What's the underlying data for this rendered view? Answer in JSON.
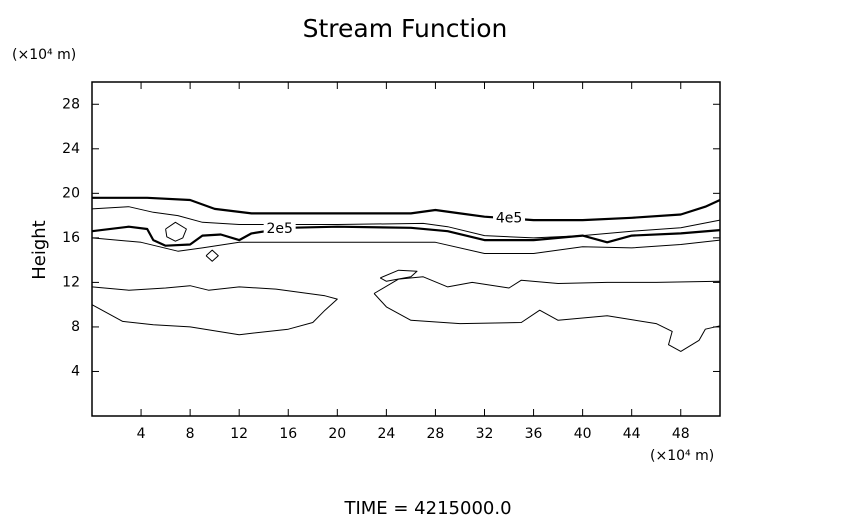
{
  "chart_data": {
    "type": "contour",
    "title": "Stream Function",
    "y_unit": "(×10⁴ m)",
    "x_unit": "(×10⁴ m)",
    "ylabel": "Height",
    "footer": "TIME = 4215000.0",
    "xlim": [
      0,
      51.2
    ],
    "ylim": [
      0,
      30
    ],
    "xticks": [
      4,
      8,
      12,
      16,
      20,
      24,
      28,
      32,
      36,
      40,
      44,
      48
    ],
    "yticks": [
      4,
      8,
      12,
      16,
      20,
      24,
      28
    ],
    "color": "#000000",
    "contours": [
      {
        "label": "4e5",
        "bold": true,
        "x": [
          0,
          4.5,
          8,
          10,
          13,
          20,
          26,
          28,
          30,
          32,
          34,
          36,
          40,
          44,
          48,
          50,
          51.2
        ],
        "y": [
          19.6,
          19.6,
          19.4,
          18.6,
          18.2,
          18.2,
          18.2,
          18.5,
          18.2,
          17.9,
          17.75,
          17.6,
          17.6,
          17.8,
          18.1,
          18.8,
          19.4
        ]
      },
      {
        "bold": false,
        "x": [
          0,
          3,
          5,
          7,
          9,
          12,
          20,
          27,
          29,
          32,
          36,
          40,
          44,
          48,
          51.2
        ],
        "y": [
          18.6,
          18.8,
          18.3,
          18.0,
          17.4,
          17.2,
          17.2,
          17.3,
          17.0,
          16.2,
          16.0,
          16.2,
          16.6,
          16.9,
          17.6
        ]
      },
      {
        "label": "2e5",
        "bold": true,
        "x": [
          0,
          3,
          4.5,
          5,
          6,
          8,
          9,
          10.5,
          12,
          13,
          15.3,
          16,
          20,
          26,
          29,
          32,
          36,
          40,
          42,
          44,
          48,
          51.2
        ],
        "y": [
          16.6,
          17.0,
          16.8,
          15.8,
          15.3,
          15.4,
          16.2,
          16.3,
          15.8,
          16.4,
          16.8,
          16.9,
          17.0,
          16.9,
          16.6,
          15.8,
          15.8,
          16.2,
          15.6,
          16.2,
          16.4,
          16.7
        ]
      },
      {
        "bold": false,
        "x": [
          0,
          4,
          7,
          9,
          12,
          16,
          20,
          28,
          32,
          36,
          40,
          44,
          48,
          51.2
        ],
        "y": [
          16.0,
          15.6,
          14.8,
          15.1,
          15.6,
          15.6,
          15.6,
          15.6,
          14.6,
          14.6,
          15.2,
          15.1,
          15.4,
          15.8
        ]
      },
      {
        "bold": false,
        "x": [
          6.0,
          6.8,
          7.7,
          7.4,
          6.8,
          6.1,
          6.0
        ],
        "y": [
          16.8,
          17.4,
          16.8,
          16.0,
          15.7,
          16.1,
          16.8
        ]
      },
      {
        "bold": false,
        "x": [
          9.3,
          9.8,
          10.3,
          9.8,
          9.3
        ],
        "y": [
          14.4,
          14.9,
          14.4,
          13.9,
          14.4
        ]
      },
      {
        "bold": false,
        "x": [
          0,
          3,
          6,
          8,
          9.5,
          12,
          15,
          19,
          20,
          19,
          18,
          16,
          12,
          8,
          5,
          2.5,
          0
        ],
        "y": [
          11.6,
          11.3,
          11.5,
          11.7,
          11.3,
          11.6,
          11.4,
          10.8,
          10.5,
          9.5,
          8.4,
          7.8,
          7.3,
          8.0,
          8.2,
          8.5,
          10.0
        ]
      },
      {
        "bold": false,
        "x": [
          23,
          25,
          27,
          29,
          31,
          34,
          35,
          38,
          42,
          46,
          51.2,
          51.2,
          50,
          49.5,
          48,
          47,
          47.3,
          46,
          42,
          38,
          36.5,
          35,
          30,
          26,
          24,
          23
        ],
        "y": [
          11.0,
          12.3,
          12.5,
          11.6,
          12.0,
          11.5,
          12.2,
          11.9,
          12.0,
          12.0,
          12.1,
          8.1,
          7.8,
          6.8,
          5.8,
          6.4,
          7.6,
          8.3,
          9.0,
          8.6,
          9.5,
          8.4,
          8.3,
          8.6,
          9.8,
          11.0
        ]
      },
      {
        "bold": false,
        "x": [
          23.5,
          25,
          26.5,
          26,
          24,
          23.5
        ],
        "y": [
          12.4,
          13.1,
          13.0,
          12.5,
          12.1,
          12.4
        ]
      }
    ]
  }
}
